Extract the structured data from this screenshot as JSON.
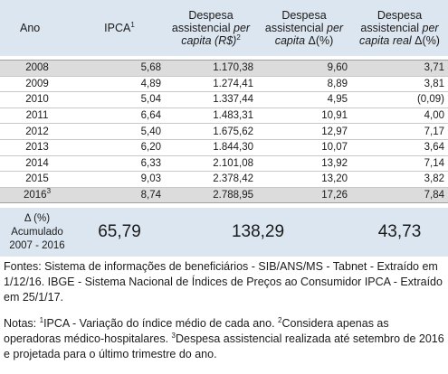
{
  "header": {
    "ano": "Ano",
    "ipca": "IPCA",
    "ipca_sup": "1",
    "despesa_pc_l1": "Despesa",
    "despesa_pc_l2a": "assistencial ",
    "despesa_pc_l2b": "per",
    "despesa_pc_l3a": "capita",
    "despesa_pc_l3b": " (R$)",
    "despesa_pc_sup": "2",
    "despesa_var_l1": "Despesa",
    "despesa_var_l2a": "assistencial ",
    "despesa_var_l2b": "per",
    "despesa_var_l3a": "capita",
    "despesa_var_l3b": "  Δ(%)",
    "despesa_real_l1": "Despesa",
    "despesa_real_l2a": "assistencial ",
    "despesa_real_l2b": "per",
    "despesa_real_l3a": "capita real",
    "despesa_real_l3b": "  Δ(%)"
  },
  "rows": [
    {
      "ano": "2008",
      "sup": "",
      "ipca": "5,68",
      "despesa": "1.170,38",
      "var": "9,60",
      "real": "3,71"
    },
    {
      "ano": "2009",
      "sup": "",
      "ipca": "4,89",
      "despesa": "1.274,41",
      "var": "8,89",
      "real": "3,81"
    },
    {
      "ano": "2010",
      "sup": "",
      "ipca": "5,04",
      "despesa": "1.337,44",
      "var": "4,95",
      "real": "(0,09)"
    },
    {
      "ano": "2011",
      "sup": "",
      "ipca": "6,64",
      "despesa": "1.483,31",
      "var": "10,91",
      "real": "4,00"
    },
    {
      "ano": "2012",
      "sup": "",
      "ipca": "5,40",
      "despesa": "1.675,62",
      "var": "12,97",
      "real": "7,17"
    },
    {
      "ano": "2013",
      "sup": "",
      "ipca": "6,20",
      "despesa": "1.844,30",
      "var": "10,07",
      "real": "3,64"
    },
    {
      "ano": "2014",
      "sup": "",
      "ipca": "6,33",
      "despesa": "2.101,08",
      "var": "13,92",
      "real": "7,14"
    },
    {
      "ano": "2015",
      "sup": "",
      "ipca": "9,03",
      "despesa": "2.378,42",
      "var": "13,20",
      "real": "3,82"
    },
    {
      "ano": "2016",
      "sup": "3",
      "ipca": "8,74",
      "despesa": "2.788,95",
      "var": "17,26",
      "real": "7,84"
    }
  ],
  "summary": {
    "label_l1": "Δ (%)",
    "label_l2": "Acumulado",
    "label_l3": "2007 - 2016",
    "ipca": "65,79",
    "despesa": "138,29",
    "real": "43,73"
  },
  "notes": {
    "fontes": "Fontes: Sistema de informações de beneficiários - SIB/ANS/MS - Tabnet - Extraído em 1/12/16. IBGE - Sistema Nacional de Índices de Preços ao Consumidor IPCA - Extraído em 25/1/17.",
    "notas_prefix": "Notas: ",
    "sup1": "1",
    "nota1": "IPCA - Variação do índice médio de cada ano. ",
    "sup2": "2",
    "nota2": "Considera apenas as operadoras médico-hospitalares. ",
    "sup3": "3",
    "nota3": "Despesa assistencial realizada até setembro de 2016 e projetada para o último trimestre do ano."
  }
}
